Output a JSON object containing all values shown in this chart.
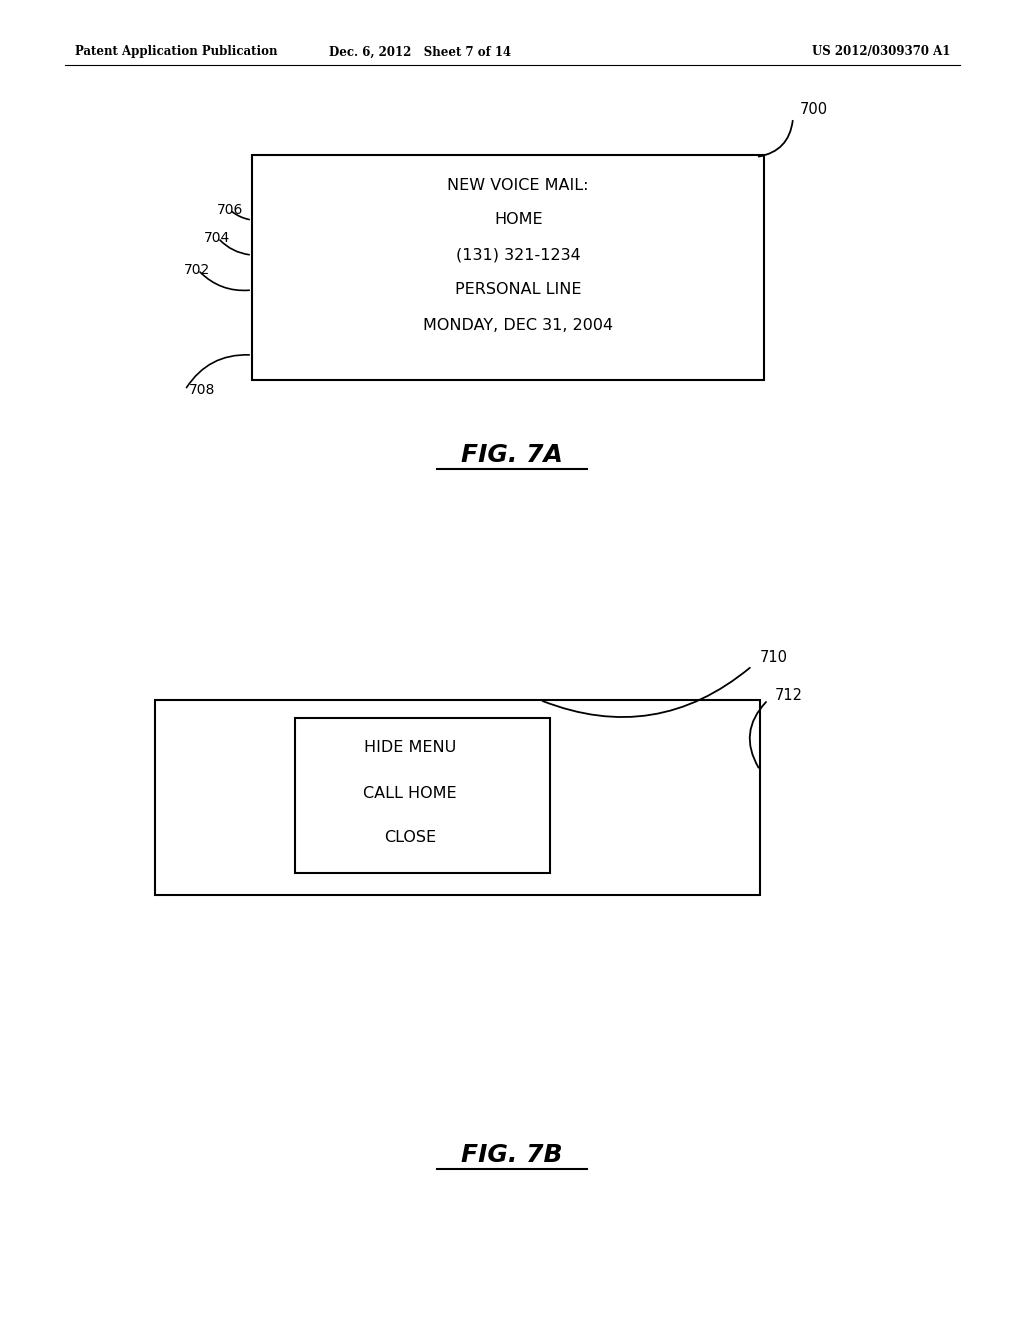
{
  "bg_color": "#ffffff",
  "header_left": "Patent Application Publication",
  "header_mid": "Dec. 6, 2012   Sheet 7 of 14",
  "header_right": "US 2012/0309370 A1",
  "fig7a_label": "FIG. 7A",
  "fig7b_label": "FIG. 7B",
  "lines_700": [
    "NEW VOICE MAIL:",
    "HOME",
    "(131) 321-1234",
    "PERSONAL LINE",
    "MONDAY, DEC 31, 2004"
  ],
  "label_706": "706",
  "label_704": "704",
  "label_702": "702",
  "label_708": "708",
  "box700_label": "700",
  "box710_label": "710",
  "box712_label": "712",
  "menu_items": [
    "HIDE MENU",
    "CALL HOME",
    "CLOSE"
  ]
}
